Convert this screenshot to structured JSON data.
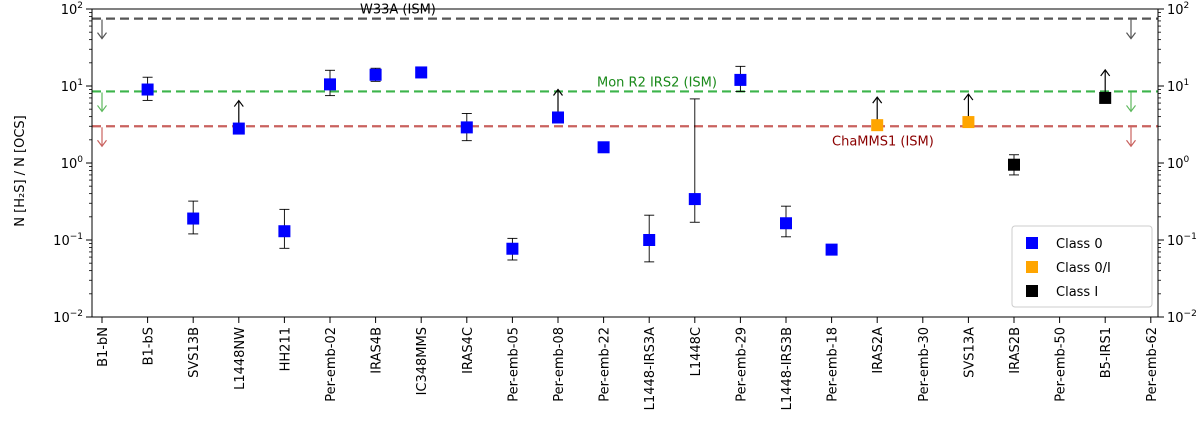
{
  "chart_data": {
    "type": "scatter",
    "title": "",
    "xlabel": "",
    "ylabel": "N [H₂S] / N [OCS]",
    "yscale": "log",
    "ylim": [
      0.01,
      100
    ],
    "ytick_values": [
      0.01,
      0.1,
      1,
      10,
      100
    ],
    "ytick_labels": [
      {
        "base": "10",
        "exp": "−2"
      },
      {
        "base": "10",
        "exp": "−1"
      },
      {
        "base": "10",
        "exp": "0"
      },
      {
        "base": "10",
        "exp": "1"
      },
      {
        "base": "10",
        "exp": "2"
      }
    ],
    "categories": [
      "B1-bN",
      "B1-bS",
      "SVS13B",
      "L1448NW",
      "HH211",
      "Per-emb-02",
      "IRAS4B",
      "IC348MMS",
      "IRAS4C",
      "Per-emb-05",
      "Per-emb-08",
      "Per-emb-22",
      "L1448-IRS3A",
      "L1448C",
      "Per-emb-29",
      "L1448-IRS3B",
      "Per-emb-18",
      "IRAS2A",
      "Per-emb-30",
      "SVS13A",
      "IRAS2B",
      "Per-emb-50",
      "B5-IRS1",
      "Per-emb-62"
    ],
    "classes": [
      {
        "name": "Class 0",
        "color": "#0000ff"
      },
      {
        "name": "Class 0/I",
        "color": "#ffa500"
      },
      {
        "name": "Class I",
        "color": "#000000"
      }
    ],
    "points": [
      {
        "source": "B1-bS",
        "value": 9.0,
        "err_low": 6.5,
        "err_high": 13.0,
        "class": "Class 0"
      },
      {
        "source": "SVS13B",
        "value": 0.19,
        "err_low": 0.12,
        "err_high": 0.32,
        "class": "Class 0"
      },
      {
        "source": "L1448NW",
        "value": 2.8,
        "lower_limit": true,
        "class": "Class 0"
      },
      {
        "source": "HH211",
        "value": 0.13,
        "err_low": 0.078,
        "err_high": 0.25,
        "class": "Class 0"
      },
      {
        "source": "Per-emb-02",
        "value": 10.5,
        "err_low": 7.5,
        "err_high": 16.0,
        "class": "Class 0"
      },
      {
        "source": "IRAS4B",
        "value": 14.0,
        "err_low": 11.5,
        "err_high": 17.0,
        "class": "Class 0"
      },
      {
        "source": "IC348MMS",
        "value": 15.0,
        "err_low": 13.5,
        "err_high": 16.5,
        "class": "Class 0"
      },
      {
        "source": "IRAS4C",
        "value": 2.9,
        "err_low": 1.95,
        "err_high": 4.4,
        "class": "Class 0"
      },
      {
        "source": "Per-emb-05",
        "value": 0.077,
        "err_low": 0.055,
        "err_high": 0.105,
        "class": "Class 0"
      },
      {
        "source": "Per-emb-08",
        "value": 3.9,
        "lower_limit": true,
        "class": "Class 0"
      },
      {
        "source": "Per-emb-22",
        "value": 1.6,
        "err_low": 1.5,
        "err_high": 1.7,
        "class": "Class 0"
      },
      {
        "source": "L1448-IRS3A",
        "value": 0.1,
        "err_low": 0.052,
        "err_high": 0.21,
        "class": "Class 0"
      },
      {
        "source": "L1448C",
        "value": 0.34,
        "err_low": 0.17,
        "err_high": 6.8,
        "class": "Class 0"
      },
      {
        "source": "Per-emb-29",
        "value": 12.0,
        "err_low": 8.5,
        "err_high": 18.0,
        "class": "Class 0"
      },
      {
        "source": "L1448-IRS3B",
        "value": 0.165,
        "err_low": 0.11,
        "err_high": 0.275,
        "class": "Class 0"
      },
      {
        "source": "Per-emb-18",
        "value": 0.075,
        "err_low": 0.066,
        "err_high": 0.085,
        "class": "Class 0"
      },
      {
        "source": "IRAS2A",
        "value": 3.1,
        "lower_limit": true,
        "class": "Class 0/I"
      },
      {
        "source": "SVS13A",
        "value": 3.4,
        "lower_limit": true,
        "class": "Class 0/I"
      },
      {
        "source": "IRAS2B",
        "value": 0.95,
        "err_low": 0.7,
        "err_high": 1.28,
        "class": "Class I"
      },
      {
        "source": "B5-IRS1",
        "value": 7.0,
        "lower_limit": true,
        "class": "Class I"
      }
    ],
    "reference_lines": [
      {
        "label": "W33A (ISM)",
        "value": 75,
        "color": "#555555",
        "label_color": "#000000",
        "arrow_color": "#555555",
        "upper_limit": true
      },
      {
        "label": "Mon R2 IRS2 (ISM)",
        "value": 8.5,
        "color": "#3cb44b",
        "label_color": "#1a8a1a",
        "arrow_color": "#5cb85c",
        "upper_limit": true
      },
      {
        "label": "ChaMMS1 (ISM)",
        "value": 3.0,
        "color": "#c9625f",
        "label_color": "#8b0000",
        "arrow_color": "#c9625f",
        "upper_limit": true
      }
    ],
    "legend_position": "lower-right"
  }
}
